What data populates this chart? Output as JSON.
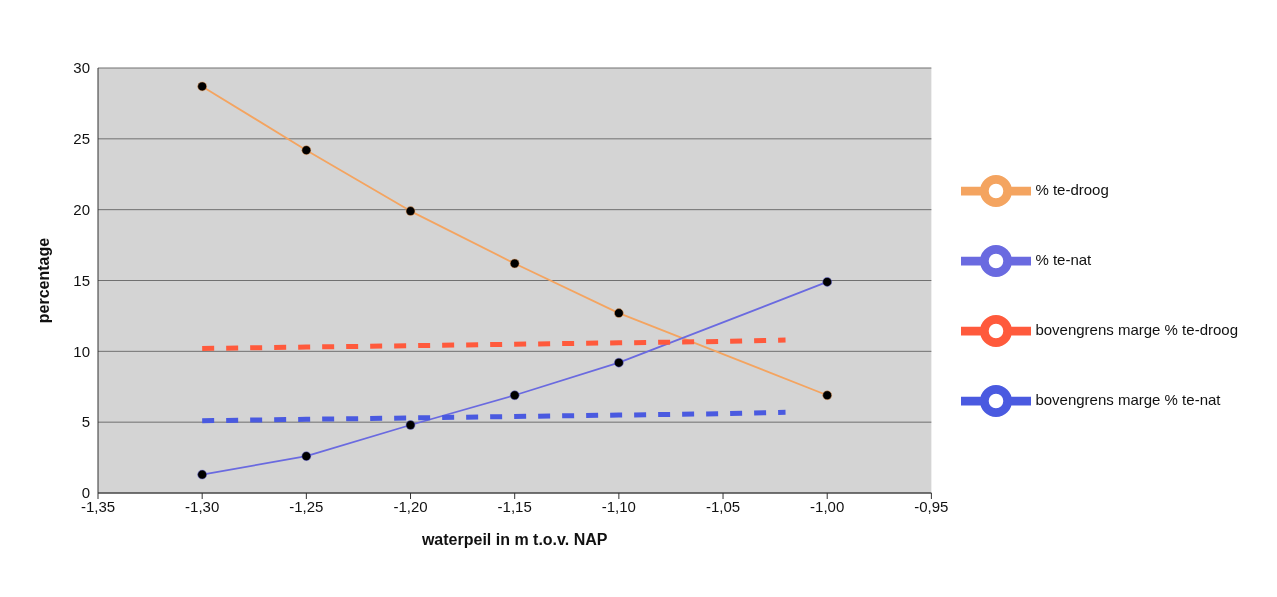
{
  "chart_data": {
    "type": "line",
    "xlabel": "waterpeil in m t.o.v. NAP",
    "ylabel": "percentage",
    "xlim": [
      -1.35,
      -0.95
    ],
    "xticks": [
      {
        "value": -1.35,
        "label": "-1,35"
      },
      {
        "value": -1.3,
        "label": "-1,30"
      },
      {
        "value": -1.25,
        "label": "-1,25"
      },
      {
        "value": -1.2,
        "label": "-1,20"
      },
      {
        "value": -1.15,
        "label": "-1,15"
      },
      {
        "value": -1.1,
        "label": "-1,10"
      },
      {
        "value": -1.05,
        "label": "-1,05"
      },
      {
        "value": -1.0,
        "label": "-1,00"
      },
      {
        "value": -0.95,
        "label": "-0,95"
      }
    ],
    "ylim": [
      0,
      30
    ],
    "yticks": [
      0,
      5,
      10,
      15,
      20,
      25,
      30
    ],
    "grid": "y",
    "legend": "right",
    "series": [
      {
        "name": "% te-droog",
        "color": "#f4a460",
        "marker": "circle",
        "x": [
          -1.3,
          -1.25,
          -1.2,
          -1.15,
          -1.1,
          -1.0
        ],
        "values": [
          28.7,
          24.2,
          19.9,
          16.2,
          12.7,
          6.9
        ]
      },
      {
        "name": "% te-nat",
        "color": "#6a6ae0",
        "marker": "circle",
        "x": [
          -1.3,
          -1.25,
          -1.2,
          -1.15,
          -1.1,
          -1.0
        ],
        "values": [
          1.3,
          2.6,
          4.8,
          6.9,
          9.2,
          14.9
        ]
      },
      {
        "name": "bovengrens marge % te-droog",
        "color": "#ff5a3c",
        "marker": "none",
        "line_style": "dashed",
        "x": [
          -1.3,
          -1.25,
          -1.2,
          -1.15,
          -1.1,
          -1.05,
          -1.02
        ],
        "values": [
          10.2,
          10.3,
          10.4,
          10.5,
          10.6,
          10.7,
          10.8
        ]
      },
      {
        "name": "bovengrens marge % te-nat",
        "color": "#4a5ae0",
        "marker": "none",
        "line_style": "dashed",
        "x": [
          -1.3,
          -1.25,
          -1.2,
          -1.15,
          -1.1,
          -1.05,
          -1.02
        ],
        "values": [
          5.1,
          5.2,
          5.3,
          5.4,
          5.5,
          5.6,
          5.7
        ]
      }
    ]
  }
}
